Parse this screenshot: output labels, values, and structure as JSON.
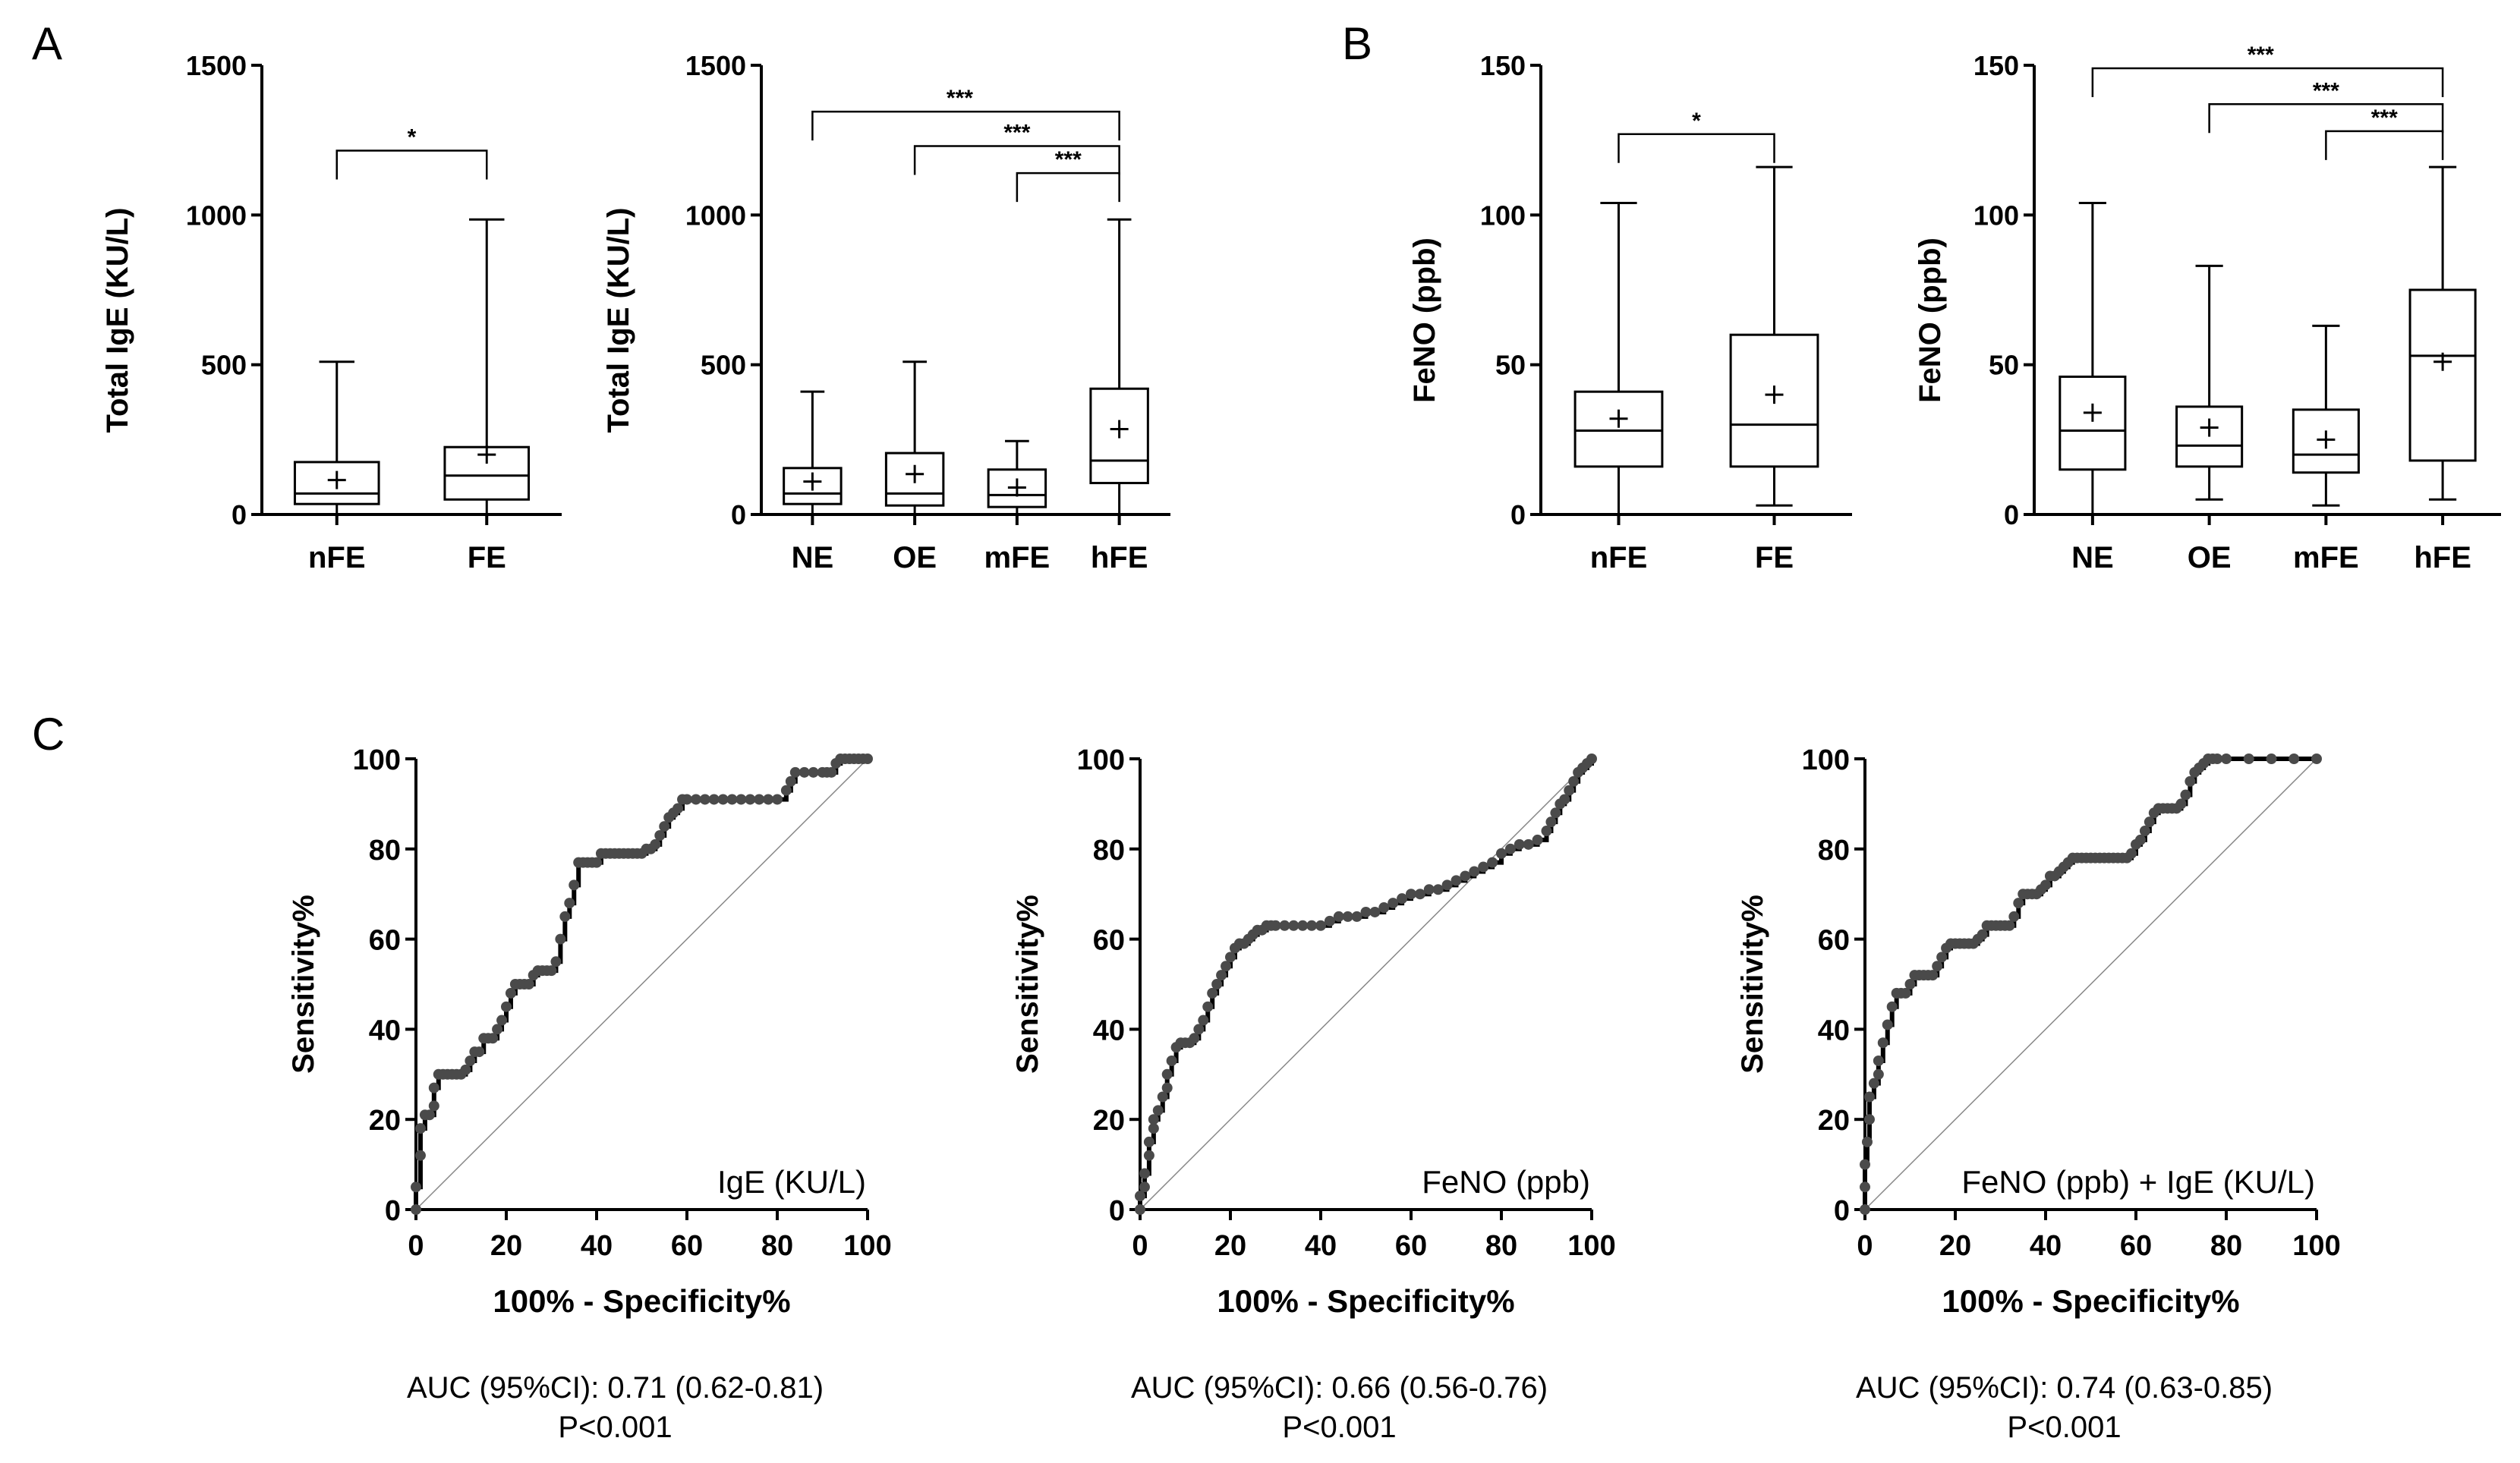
{
  "panel_letters": [
    "A",
    "B",
    "C"
  ],
  "colors": {
    "ink": "#000000",
    "roc_line": "#000000",
    "roc_point": "#4a4a4a",
    "diagonal": "#888888"
  },
  "chart_data": [
    {
      "id": "a1",
      "type": "box",
      "panel": "A",
      "ylabel": "Total IgE (KU/L)",
      "ylim": [
        0,
        1500
      ],
      "yticks": [
        0,
        500,
        1000,
        1500
      ],
      "categories": [
        "nFE",
        "FE"
      ],
      "boxes": [
        {
          "min": 0,
          "q1": 35,
          "median": 70,
          "q3": 175,
          "max": 510,
          "mean": 115
        },
        {
          "min": 0,
          "q1": 50,
          "median": 130,
          "q3": 225,
          "max": 985,
          "mean": 200
        }
      ],
      "brackets": [
        {
          "from": 0,
          "to": 1,
          "y": 1215,
          "label": "*"
        }
      ]
    },
    {
      "id": "a2",
      "type": "box",
      "panel": "A",
      "ylabel": "Total IgE (KU/L)",
      "ylim": [
        0,
        1500
      ],
      "yticks": [
        0,
        500,
        1000,
        1500
      ],
      "categories": [
        "NE",
        "OE",
        "mFE",
        "hFE"
      ],
      "boxes": [
        {
          "min": 0,
          "q1": 35,
          "median": 70,
          "q3": 155,
          "max": 410,
          "mean": 110
        },
        {
          "min": 0,
          "q1": 30,
          "median": 70,
          "q3": 205,
          "max": 510,
          "mean": 135
        },
        {
          "min": 0,
          "q1": 25,
          "median": 65,
          "q3": 150,
          "max": 245,
          "mean": 90
        },
        {
          "min": 0,
          "q1": 105,
          "median": 180,
          "q3": 420,
          "max": 985,
          "mean": 285
        }
      ],
      "brackets": [
        {
          "from": 0,
          "to": 3,
          "y": 1345,
          "label": "***"
        },
        {
          "from": 1,
          "to": 3,
          "y": 1230,
          "label": "***"
        },
        {
          "from": 2,
          "to": 3,
          "y": 1140,
          "label": "***"
        }
      ]
    },
    {
      "id": "b1",
      "type": "box",
      "panel": "B",
      "ylabel": "FeNO (ppb)",
      "ylim": [
        0,
        150
      ],
      "yticks": [
        0,
        50,
        100,
        150
      ],
      "categories": [
        "nFE",
        "FE"
      ],
      "boxes": [
        {
          "min": 0,
          "q1": 16,
          "median": 28,
          "q3": 41,
          "max": 104,
          "mean": 32
        },
        {
          "min": 3,
          "q1": 16,
          "median": 30,
          "q3": 60,
          "max": 116,
          "mean": 40
        }
      ],
      "brackets": [
        {
          "from": 0,
          "to": 1,
          "y": 127,
          "label": "*"
        }
      ]
    },
    {
      "id": "b2",
      "type": "box",
      "panel": "B",
      "ylabel": "FeNO (ppb)",
      "ylim": [
        0,
        150
      ],
      "yticks": [
        0,
        50,
        100,
        150
      ],
      "categories": [
        "NE",
        "OE",
        "mFE",
        "hFE"
      ],
      "boxes": [
        {
          "min": 0,
          "q1": 15,
          "median": 28,
          "q3": 46,
          "max": 104,
          "mean": 34
        },
        {
          "min": 5,
          "q1": 16,
          "median": 23,
          "q3": 36,
          "max": 83,
          "mean": 29
        },
        {
          "min": 3,
          "q1": 14,
          "median": 20,
          "q3": 35,
          "max": 63,
          "mean": 25
        },
        {
          "min": 5,
          "q1": 18,
          "median": 53,
          "q3": 75,
          "max": 116,
          "mean": 51
        }
      ],
      "brackets": [
        {
          "from": 0,
          "to": 3,
          "y": 149,
          "label": "***"
        },
        {
          "from": 1,
          "to": 3,
          "y": 137,
          "label": "***"
        },
        {
          "from": 2,
          "to": 3,
          "y": 128,
          "label": "***"
        }
      ]
    },
    {
      "id": "c1",
      "type": "line",
      "panel": "C",
      "ylabel": "Sensitivity%",
      "xlabel": "100% - Specificity%",
      "xlim": [
        0,
        100
      ],
      "ylim": [
        0,
        100
      ],
      "ticks": [
        0,
        20,
        40,
        60,
        80,
        100
      ],
      "curve_label": "IgE (KU/L)",
      "auc": "AUC (95%CI): 0.71 (0.62-0.81)",
      "p": "P<0.001",
      "x": [
        0,
        0,
        1,
        1,
        2,
        3,
        4,
        4,
        5,
        6,
        7,
        8,
        9,
        10,
        11,
        12,
        13,
        14,
        15,
        16,
        17,
        18,
        19,
        20,
        21,
        22,
        23,
        24,
        25,
        26,
        27,
        28,
        29,
        30,
        31,
        32,
        33,
        34,
        35,
        36,
        37,
        38,
        39,
        40,
        41,
        42,
        43,
        44,
        45,
        46,
        47,
        48,
        49,
        50,
        51,
        52,
        53,
        54,
        55,
        56,
        57,
        58,
        59,
        60,
        62,
        64,
        66,
        68,
        70,
        72,
        74,
        76,
        78,
        80,
        82,
        83,
        84,
        86,
        88,
        90,
        91,
        92,
        93,
        94,
        95,
        96,
        97,
        98,
        99,
        100
      ],
      "y": [
        0,
        5,
        12,
        18,
        21,
        21,
        23,
        27,
        30,
        30,
        30,
        30,
        30,
        30,
        31,
        33,
        35,
        35,
        38,
        38,
        38,
        40,
        42,
        45,
        48,
        50,
        50,
        50,
        50,
        52,
        53,
        53,
        53,
        53,
        55,
        60,
        65,
        68,
        72,
        77,
        77,
        77,
        77,
        77,
        79,
        79,
        79,
        79,
        79,
        79,
        79,
        79,
        79,
        79,
        80,
        80,
        81,
        83,
        85,
        87,
        88,
        89,
        91,
        91,
        91,
        91,
        91,
        91,
        91,
        91,
        91,
        91,
        91,
        91,
        93,
        95,
        97,
        97,
        97,
        97,
        97,
        97,
        99,
        100,
        100,
        100,
        100,
        100,
        100,
        100
      ]
    },
    {
      "id": "c2",
      "type": "line",
      "panel": "C",
      "ylabel": "Sensitivity%",
      "xlabel": "100% - Specificity%",
      "xlim": [
        0,
        100
      ],
      "ylim": [
        0,
        100
      ],
      "ticks": [
        0,
        20,
        40,
        60,
        80,
        100
      ],
      "curve_label": "FeNO (ppb)",
      "auc": "AUC (95%CI): 0.66 (0.56-0.76)",
      "p": "P<0.001",
      "x": [
        0,
        0,
        1,
        1,
        2,
        2,
        3,
        3,
        4,
        5,
        6,
        6,
        7,
        8,
        9,
        10,
        11,
        12,
        13,
        14,
        15,
        16,
        17,
        18,
        19,
        20,
        21,
        22,
        23,
        24,
        25,
        26,
        27,
        28,
        29,
        30,
        32,
        34,
        36,
        38,
        40,
        42,
        44,
        46,
        48,
        50,
        52,
        54,
        56,
        58,
        60,
        62,
        64,
        66,
        68,
        70,
        72,
        74,
        76,
        78,
        80,
        82,
        84,
        86,
        88,
        90,
        91,
        92,
        93,
        94,
        95,
        96,
        97,
        98,
        99,
        100
      ],
      "y": [
        0,
        3,
        5,
        8,
        12,
        15,
        18,
        20,
        22,
        25,
        27,
        30,
        33,
        36,
        37,
        37,
        37,
        38,
        40,
        42,
        45,
        48,
        50,
        52,
        54,
        56,
        58,
        59,
        59,
        60,
        61,
        62,
        62,
        63,
        63,
        63,
        63,
        63,
        63,
        63,
        63,
        64,
        65,
        65,
        65,
        66,
        66,
        67,
        68,
        69,
        70,
        70,
        71,
        71,
        72,
        73,
        74,
        75,
        76,
        77,
        79,
        80,
        81,
        81,
        82,
        84,
        86,
        88,
        90,
        91,
        93,
        95,
        97,
        98,
        99,
        100
      ]
    },
    {
      "id": "c3",
      "type": "line",
      "panel": "C",
      "ylabel": "Sensitivity%",
      "xlabel": "100% - Specificity%",
      "xlim": [
        0,
        100
      ],
      "ylim": [
        0,
        100
      ],
      "ticks": [
        0,
        20,
        40,
        60,
        80,
        100
      ],
      "curve_label": "FeNO (ppb) + IgE (KU/L)",
      "auc": "AUC (95%CI): 0.74 (0.63-0.85)",
      "p": "P<0.001",
      "x": [
        0,
        0,
        0,
        0.5,
        1,
        1,
        2,
        3,
        3,
        4,
        5,
        6,
        7,
        8,
        9,
        10,
        11,
        12,
        13,
        14,
        15,
        16,
        17,
        18,
        19,
        20,
        21,
        22,
        23,
        24,
        25,
        26,
        27,
        28,
        29,
        30,
        31,
        32,
        33,
        34,
        35,
        36,
        37,
        38,
        39,
        40,
        41,
        42,
        43,
        44,
        45,
        46,
        47,
        48,
        49,
        50,
        51,
        52,
        53,
        54,
        55,
        56,
        57,
        58,
        59,
        60,
        61,
        62,
        63,
        64,
        65,
        66,
        67,
        68,
        69,
        70,
        71,
        72,
        73,
        74,
        75,
        76,
        77,
        78,
        80,
        85,
        90,
        95,
        100
      ],
      "y": [
        0,
        5,
        10,
        15,
        20,
        25,
        28,
        30,
        33,
        37,
        41,
        45,
        48,
        48,
        48,
        50,
        52,
        52,
        52,
        52,
        52,
        54,
        56,
        58,
        59,
        59,
        59,
        59,
        59,
        59,
        60,
        61,
        63,
        63,
        63,
        63,
        63,
        63,
        65,
        68,
        70,
        70,
        70,
        70,
        71,
        72,
        74,
        74,
        75,
        76,
        77,
        78,
        78,
        78,
        78,
        78,
        78,
        78,
        78,
        78,
        78,
        78,
        78,
        78,
        79,
        81,
        82,
        84,
        86,
        88,
        89,
        89,
        89,
        89,
        89,
        90,
        92,
        95,
        97,
        98,
        99,
        100,
        100,
        100,
        100,
        100,
        100,
        100,
        100
      ]
    }
  ]
}
